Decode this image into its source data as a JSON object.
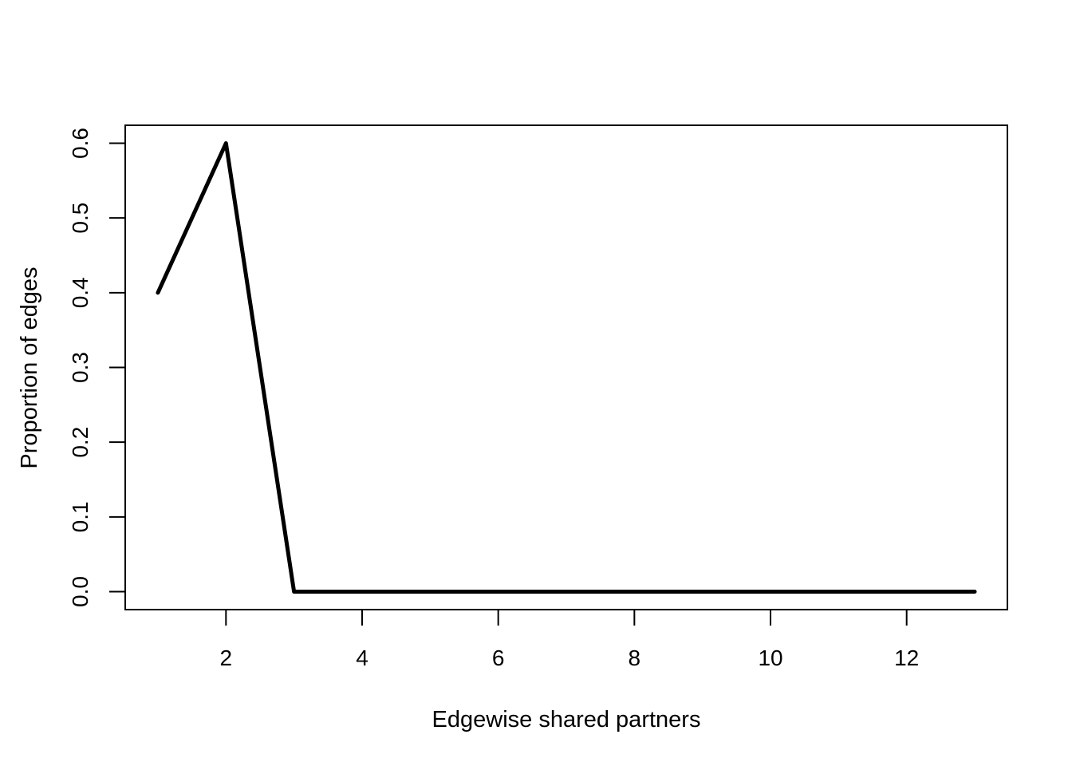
{
  "chart_data": {
    "type": "line",
    "title": "",
    "xlabel": "Edgewise shared partners",
    "ylabel": "Proportion of edges",
    "x": [
      1,
      2,
      3,
      4,
      5,
      6,
      7,
      8,
      9,
      10,
      11,
      12,
      13
    ],
    "series": [
      {
        "values": [
          0.4,
          0.6,
          0,
          0,
          0,
          0,
          0,
          0,
          0,
          0,
          0,
          0,
          0
        ],
        "color": "#000000"
      }
    ],
    "xlim": [
      0.52,
      13.48
    ],
    "ylim": [
      -0.024,
      0.624
    ],
    "xticks": [
      2,
      4,
      6,
      8,
      10,
      12
    ],
    "yticks": [
      0.0,
      0.1,
      0.2,
      0.3,
      0.4,
      0.5,
      0.6
    ],
    "xtick_labels": [
      "2",
      "4",
      "6",
      "8",
      "10",
      "12"
    ],
    "ytick_labels": [
      "0.0",
      "0.1",
      "0.2",
      "0.3",
      "0.4",
      "0.5",
      "0.6"
    ],
    "grid": false,
    "legend": "none"
  }
}
